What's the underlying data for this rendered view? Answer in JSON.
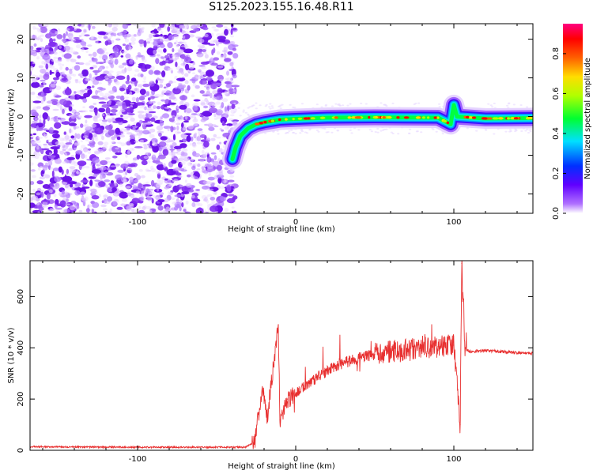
{
  "title": "S125.2023.155.16.48.R11",
  "colors": {
    "noise": "#8a2be2",
    "snr_line": "#e83030",
    "axis": "#000000",
    "grid": "#000000"
  },
  "chart_data": [
    {
      "type": "heatmap",
      "xlabel": "Height of straight line (km)",
      "ylabel": "Frequency (Hz)",
      "xlim": [
        -168,
        150
      ],
      "ylim": [
        -25,
        24
      ],
      "x_ticks": [
        -100,
        0,
        100
      ],
      "x_tick_labels": [
        "-100",
        "0",
        "100"
      ],
      "y_ticks": [
        -20,
        -10,
        0,
        10,
        20
      ],
      "y_tick_labels": [
        "-20",
        "-10",
        "0",
        "10",
        "20"
      ],
      "noise_region_x": [
        -168,
        -40
      ],
      "signal_trace": [
        {
          "x": -40,
          "y": -11
        },
        {
          "x": -38,
          "y": -8
        },
        {
          "x": -35,
          "y": -5
        },
        {
          "x": -30,
          "y": -3
        },
        {
          "x": -25,
          "y": -2
        },
        {
          "x": -20,
          "y": -1.5
        },
        {
          "x": -10,
          "y": -0.8
        },
        {
          "x": 0,
          "y": -0.6
        },
        {
          "x": 20,
          "y": -0.3
        },
        {
          "x": 50,
          "y": -0.2
        },
        {
          "x": 90,
          "y": -0.3
        },
        {
          "x": 98,
          "y": -2
        },
        {
          "x": 100,
          "y": 3
        },
        {
          "x": 102,
          "y": 0
        },
        {
          "x": 120,
          "y": -0.5
        },
        {
          "x": 150,
          "y": -0.4
        }
      ],
      "colorbar": {
        "label": "Normalized spectral amplitude",
        "range": [
          0,
          0.95
        ],
        "ticks": [
          0,
          0.2,
          0.4,
          0.6,
          0.8
        ],
        "tick_labels": [
          "0.0",
          "0.2",
          "0.4",
          "0.6",
          "0.8"
        ]
      }
    },
    {
      "type": "line",
      "xlabel": "Height of straight line (km)",
      "ylabel": "SNR (10 * v/v)",
      "xlim": [
        -168,
        150
      ],
      "ylim": [
        0,
        740
      ],
      "x_ticks": [
        -100,
        0,
        100
      ],
      "x_tick_labels": [
        "-100",
        "0",
        "100"
      ],
      "y_ticks": [
        0,
        200,
        400,
        600
      ],
      "y_tick_labels": [
        "0",
        "200",
        "400",
        "600"
      ],
      "series": [
        {
          "color": "#e83030",
          "points": [
            [
              -168,
              14
            ],
            [
              -140,
              13
            ],
            [
              -100,
              12
            ],
            [
              -60,
              12
            ],
            [
              -32,
              12
            ],
            [
              -26,
              30
            ],
            [
              -21,
              240
            ],
            [
              -18,
              130
            ],
            [
              -11,
              490
            ],
            [
              -10,
              120
            ],
            [
              -5,
              200
            ],
            [
              0,
              220
            ],
            [
              10,
              270
            ],
            [
              20,
              310
            ],
            [
              30,
              340
            ],
            [
              40,
              360
            ],
            [
              50,
              375
            ],
            [
              60,
              385
            ],
            [
              70,
              390
            ],
            [
              80,
              400
            ],
            [
              90,
              405
            ],
            [
              100,
              410
            ],
            [
              104,
              100
            ],
            [
              105,
              730
            ],
            [
              107,
              400
            ],
            [
              110,
              385
            ],
            [
              120,
              390
            ],
            [
              130,
              385
            ],
            [
              140,
              380
            ],
            [
              150,
              378
            ]
          ]
        }
      ]
    }
  ]
}
